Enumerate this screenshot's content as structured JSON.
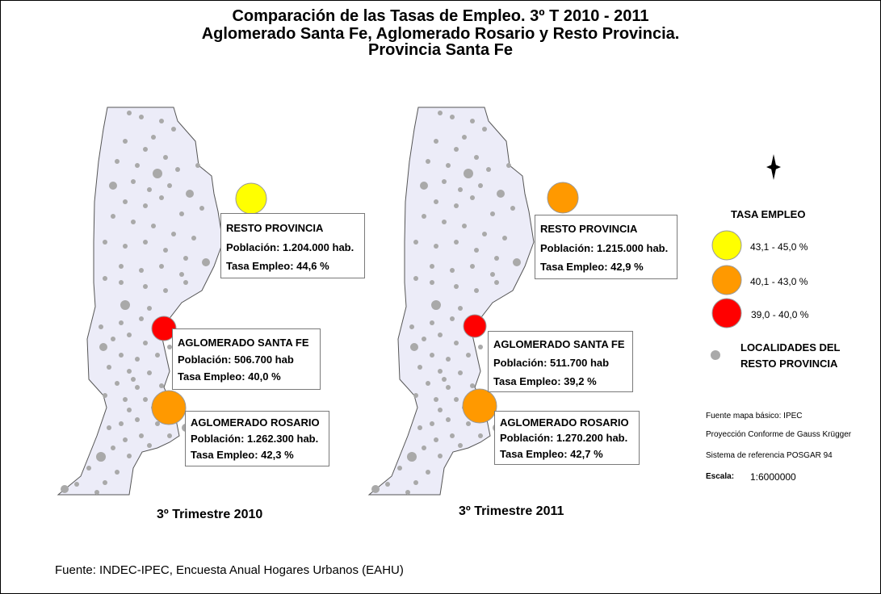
{
  "title": {
    "line1": "Comparación de las Tasas de Empleo. 3º T 2010 - 2011",
    "line2": "Aglomerado Santa Fe, Aglomerado Rosario y Resto Provincia.",
    "line3": "Provincia Santa Fe"
  },
  "colors": {
    "province_fill": "#ececf8",
    "locality_dot": "#a9a9a9",
    "range_high": "#ffff00",
    "range_mid": "#ff9900",
    "range_low": "#ff0000"
  },
  "maps": [
    {
      "period": "3º Trimestre 2010",
      "regions": [
        {
          "name": "RESTO PROVINCIA",
          "population": "Población: 1.204.000 hab.",
          "rate": "Tasa Empleo: 44,6 %",
          "rate_value": 44.6,
          "range": "high"
        },
        {
          "name": "AGLOMERADO SANTA FE",
          "population": "Población: 506.700 hab",
          "rate": "Tasa Empleo: 40,0 %",
          "rate_value": 40.0,
          "range": "low"
        },
        {
          "name": "AGLOMERADO ROSARIO",
          "population": "Población: 1.262.300 hab.",
          "rate": "Tasa Empleo: 42,3 %",
          "rate_value": 42.3,
          "range": "mid"
        }
      ]
    },
    {
      "period": "3º Trimestre 2011",
      "regions": [
        {
          "name": "RESTO PROVINCIA",
          "population": "Población: 1.215.000 hab.",
          "rate": "Tasa Empleo: 42,9 %",
          "rate_value": 42.9,
          "range": "mid"
        },
        {
          "name": "AGLOMERADO SANTA FE",
          "population": "Población: 511.700 hab",
          "rate": "Tasa Empleo: 39,2 %",
          "rate_value": 39.2,
          "range": "low"
        },
        {
          "name": "AGLOMERADO ROSARIO",
          "population": "Población: 1.270.200 hab.",
          "rate": "Tasa Empleo: 42,7 %",
          "rate_value": 42.7,
          "range": "mid"
        }
      ]
    }
  ],
  "legend": {
    "title": "TASA EMPLEO",
    "ranges": [
      "43,1 - 45,0 %",
      "40,1 - 43,0 %",
      "39,0 - 40,0 %"
    ],
    "localities_label_1": "LOCALIDADES DEL",
    "localities_label_2": "RESTO PROVINCIA"
  },
  "map_info": {
    "base_map_source": "Fuente mapa básico: IPEC",
    "projection": "Proyección Conforme de Gauss Krügger",
    "reference_system": "Sistema de referencia POSGAR 94",
    "scale_label": "Escala:",
    "scale_value": "1:6000000"
  },
  "source": "Fuente: INDEC-IPEC, Encuesta Anual Hogares Urbanos (EAHU)"
}
